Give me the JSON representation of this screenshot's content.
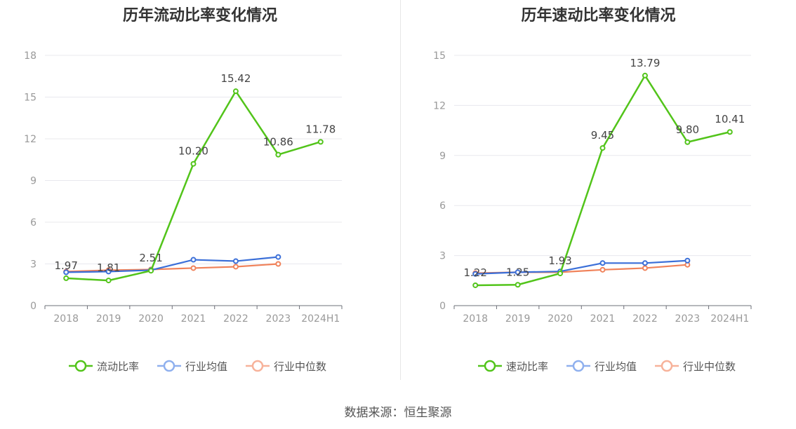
{
  "source_text": "数据来源：恒生聚源",
  "colors": {
    "primary": "#52c41a",
    "avg": "#3b6fd8",
    "median": "#f0825a",
    "grid": "#e8e8ee",
    "axis": "#999999"
  },
  "chart_data": [
    {
      "type": "line",
      "title": "历年流动比率变化情况",
      "categories": [
        "2018",
        "2019",
        "2020",
        "2021",
        "2022",
        "2023",
        "2024H1"
      ],
      "yticks": [
        "0",
        "3",
        "6",
        "9",
        "12",
        "15",
        "18"
      ],
      "ylim": [
        0,
        18
      ],
      "series": [
        {
          "name": "流动比率",
          "values": [
            1.97,
            1.81,
            2.51,
            10.2,
            15.42,
            10.86,
            11.78
          ],
          "labels": [
            "1.97",
            "1.81",
            "2.51",
            "10.20",
            "15.42",
            "10.86",
            "11.78"
          ]
        },
        {
          "name": "行业均值",
          "values": [
            2.4,
            2.45,
            2.55,
            3.3,
            3.2,
            3.5,
            null
          ]
        },
        {
          "name": "行业中位数",
          "values": [
            2.45,
            2.55,
            2.6,
            2.7,
            2.8,
            3.0,
            null
          ]
        }
      ],
      "legend": "bottom"
    },
    {
      "type": "line",
      "title": "历年速动比率变化情况",
      "categories": [
        "2018",
        "2019",
        "2020",
        "2021",
        "2022",
        "2023",
        "2024H1"
      ],
      "yticks": [
        "0",
        "3",
        "6",
        "9",
        "12",
        "15"
      ],
      "ylim": [
        0,
        15
      ],
      "series": [
        {
          "name": "速动比率",
          "values": [
            1.22,
            1.25,
            1.93,
            9.45,
            13.79,
            9.8,
            10.41
          ],
          "labels": [
            "1.22",
            "1.25",
            "1.93",
            "9.45",
            "13.79",
            "9.80",
            "10.41"
          ]
        },
        {
          "name": "行业均值",
          "values": [
            1.9,
            2.0,
            2.05,
            2.55,
            2.55,
            2.7,
            null
          ]
        },
        {
          "name": "行业中位数",
          "values": [
            1.95,
            2.0,
            2.0,
            2.15,
            2.25,
            2.45,
            null
          ]
        }
      ],
      "legend": "bottom"
    }
  ]
}
